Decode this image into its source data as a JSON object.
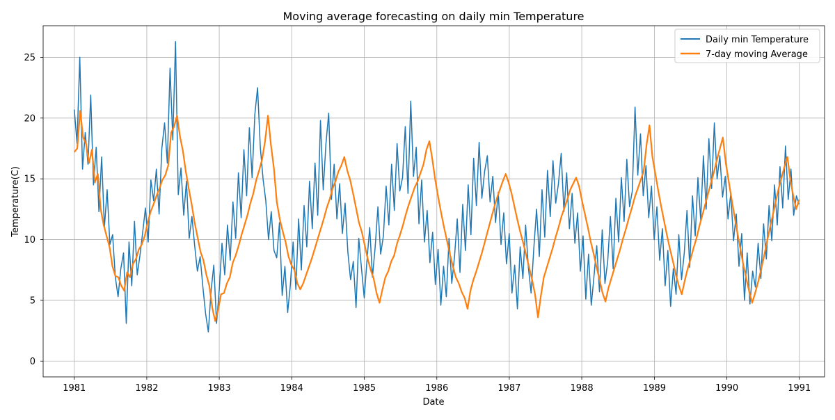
{
  "chart_data": {
    "type": "line",
    "title": "Moving average forecasting on daily min Temperature",
    "xlabel": "Date",
    "ylabel": "Temperature(C)",
    "x_range": [
      "1980-07-28",
      "1991-05-08"
    ],
    "ylim": [
      -1.3,
      27.6
    ],
    "x_ticks": [
      "1981",
      "1982",
      "1983",
      "1984",
      "1985",
      "1986",
      "1987",
      "1988",
      "1989",
      "1990",
      "1991"
    ],
    "y_ticks": [
      0,
      5,
      10,
      15,
      20,
      25
    ],
    "grid": true,
    "legend_position": "top-right",
    "x_start": "1981-01-01",
    "x_end": "1990-12-31",
    "series": [
      {
        "name": "Daily min Temperature",
        "color": "#1f77b4",
        "line_width": 1.5,
        "sampling": "approximate values at 15-day intervals from 1981-01-01",
        "values": [
          20.7,
          17.9,
          25.0,
          15.8,
          18.8,
          16.2,
          21.9,
          14.5,
          17.6,
          12.3,
          16.8,
          11.0,
          14.1,
          9.6,
          10.4,
          6.9,
          5.3,
          7.6,
          8.9,
          3.1,
          9.8,
          6.2,
          11.5,
          7.1,
          8.7,
          10.6,
          12.6,
          9.8,
          14.9,
          13.2,
          15.8,
          12.1,
          17.5,
          19.6,
          16.3,
          24.1,
          18.2,
          26.3,
          13.7,
          15.9,
          12.0,
          14.8,
          10.1,
          11.9,
          9.5,
          7.4,
          8.6,
          6.1,
          3.9,
          2.4,
          5.8,
          7.9,
          3.1,
          5.9,
          9.7,
          7.1,
          11.2,
          8.3,
          13.1,
          10.1,
          15.5,
          11.8,
          17.4,
          13.6,
          19.2,
          15.1,
          20.3,
          22.5,
          17.6,
          15.0,
          13.2,
          10.0,
          12.3,
          9.1,
          8.5,
          11.4,
          5.4,
          7.8,
          4.0,
          6.3,
          9.8,
          5.9,
          11.7,
          7.5,
          12.8,
          9.4,
          14.8,
          10.9,
          16.3,
          12.0,
          19.8,
          14.1,
          17.9,
          20.4,
          13.3,
          16.2,
          11.7,
          14.6,
          10.5,
          13.0,
          9.0,
          6.7,
          8.2,
          4.4,
          10.1,
          7.6,
          5.2,
          8.3,
          11.0,
          6.9,
          9.4,
          12.7,
          8.8,
          10.3,
          14.4,
          11.2,
          16.2,
          12.4,
          17.9,
          14.0,
          15.1,
          19.3,
          13.8,
          21.4,
          15.2,
          17.6,
          11.3,
          14.9,
          9.8,
          12.4,
          8.1,
          10.6,
          6.3,
          9.2,
          4.6,
          7.8,
          5.3,
          10.1,
          6.4,
          8.6,
          11.7,
          7.3,
          12.9,
          9.1,
          14.5,
          10.4,
          16.7,
          12.8,
          18.0,
          13.4,
          15.6,
          16.9,
          13.1,
          15.2,
          11.4,
          13.9,
          9.6,
          12.2,
          8.0,
          10.5,
          5.6,
          7.9,
          4.3,
          9.4,
          6.8,
          11.2,
          7.7,
          5.6,
          9.3,
          12.5,
          8.6,
          14.1,
          10.2,
          15.7,
          11.9,
          16.5,
          13.0,
          14.6,
          17.1,
          12.3,
          15.5,
          10.9,
          13.8,
          9.7,
          12.2,
          7.4,
          10.3,
          5.1,
          8.8,
          4.6,
          7.0,
          9.5,
          5.7,
          10.8,
          6.4,
          8.2,
          11.9,
          7.6,
          13.4,
          9.8,
          15.1,
          11.5,
          16.6,
          12.7,
          14.0,
          20.9,
          15.3,
          18.7,
          13.6,
          16.1,
          11.8,
          14.4,
          10.0,
          12.7,
          8.3,
          10.9,
          6.2,
          9.1,
          4.5,
          7.6,
          5.5,
          10.4,
          6.7,
          8.9,
          12.4,
          7.7,
          13.6,
          10.3,
          15.1,
          11.6,
          16.9,
          12.5,
          18.3,
          14.2,
          19.6,
          15.0,
          16.9,
          13.5,
          15.2,
          11.7,
          13.8,
          9.9,
          12.1,
          7.8,
          10.5,
          5.0,
          8.9,
          4.7,
          7.4,
          6.1,
          9.7,
          6.8,
          11.3,
          8.4,
          12.8,
          9.9,
          14.5,
          11.2,
          16.0,
          12.6,
          17.7,
          13.3,
          15.8,
          12.0,
          13.6,
          12.9
        ]
      },
      {
        "name": "7-day moving Average",
        "color": "#ff7f0e",
        "line_width": 2.2,
        "sampling": "approximate values at 15-day intervals from 1981-01-01",
        "values": [
          17.2,
          17.5,
          20.6,
          18.4,
          17.9,
          16.3,
          17.4,
          14.7,
          15.4,
          12.5,
          11.2,
          10.3,
          9.4,
          7.8,
          7.0,
          6.9,
          6.2,
          5.8,
          7.3,
          6.9,
          8.0,
          8.4,
          9.2,
          9.6,
          10.3,
          11.4,
          12.3,
          12.9,
          13.6,
          14.2,
          14.9,
          15.3,
          16.1,
          18.8,
          19.3,
          20.2,
          18.5,
          17.3,
          15.6,
          14.2,
          12.9,
          11.4,
          10.2,
          9.0,
          8.3,
          7.1,
          6.2,
          4.4,
          3.3,
          4.2,
          5.5,
          5.6,
          6.4,
          6.9,
          8.1,
          8.7,
          9.5,
          10.4,
          11.2,
          12.0,
          13.0,
          13.8,
          14.9,
          15.7,
          16.6,
          18.1,
          20.2,
          17.8,
          15.9,
          13.1,
          11.7,
          10.7,
          9.8,
          8.6,
          7.9,
          7.5,
          6.4,
          5.9,
          6.4,
          7.1,
          7.8,
          8.5,
          9.3,
          10.1,
          10.9,
          11.7,
          12.6,
          13.3,
          14.2,
          14.8,
          15.6,
          16.1,
          16.8,
          15.7,
          14.9,
          13.8,
          12.6,
          11.4,
          10.6,
          9.5,
          8.4,
          7.5,
          6.8,
          5.6,
          4.8,
          5.9,
          6.9,
          7.4,
          8.2,
          8.7,
          9.7,
          10.4,
          11.2,
          12.1,
          12.9,
          13.6,
          14.3,
          14.8,
          15.5,
          16.2,
          17.4,
          18.1,
          16.6,
          14.9,
          13.5,
          12.2,
          11.0,
          9.9,
          8.8,
          7.8,
          6.9,
          6.4,
          5.7,
          5.2,
          4.3,
          5.8,
          6.7,
          7.4,
          8.2,
          9.0,
          9.9,
          10.8,
          11.7,
          12.6,
          13.4,
          14.1,
          14.8,
          15.4,
          14.7,
          13.8,
          12.7,
          11.6,
          10.6,
          9.7,
          8.7,
          7.7,
          6.7,
          5.5,
          3.6,
          5.4,
          6.9,
          7.7,
          8.5,
          9.3,
          10.2,
          11.0,
          11.9,
          12.6,
          13.3,
          14.1,
          14.6,
          15.1,
          14.4,
          13.2,
          12.1,
          11.0,
          9.8,
          8.8,
          7.7,
          6.7,
          5.6,
          4.9,
          6.0,
          6.8,
          7.6,
          8.4,
          9.2,
          10.1,
          10.9,
          11.8,
          12.6,
          13.5,
          14.2,
          14.9,
          15.6,
          17.8,
          19.4,
          16.8,
          15.4,
          14.0,
          12.7,
          11.5,
          10.3,
          9.2,
          8.2,
          7.1,
          6.2,
          5.5,
          6.6,
          7.6,
          8.4,
          9.3,
          10.1,
          11.1,
          12.0,
          12.9,
          13.8,
          14.7,
          15.6,
          16.6,
          17.5,
          18.4,
          16.3,
          14.8,
          13.3,
          11.9,
          10.5,
          9.2,
          7.9,
          6.8,
          5.7,
          4.8,
          5.6,
          6.5,
          7.5,
          8.6,
          9.8,
          10.9,
          12.0,
          13.1,
          14.2,
          15.1,
          16.0,
          16.8,
          14.9,
          13.6,
          12.5,
          13.3
        ]
      }
    ]
  }
}
